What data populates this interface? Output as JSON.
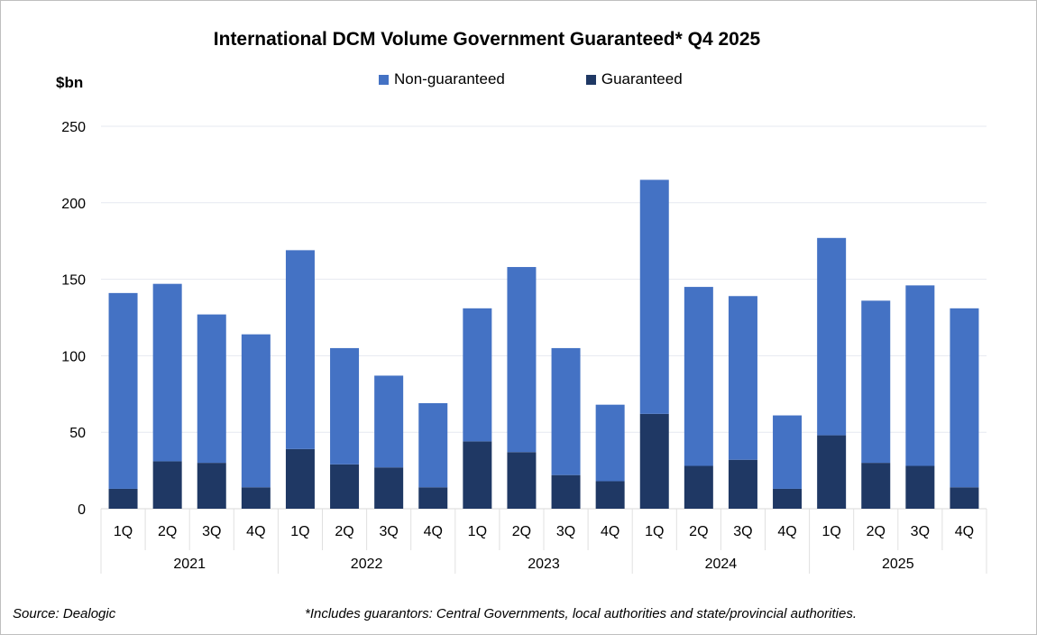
{
  "chart_data": {
    "type": "bar",
    "stacked": true,
    "title": "International DCM Volume Government Guaranteed* Q4 2025",
    "ylabel": "$bn",
    "ylim": [
      0,
      250
    ],
    "yticks": [
      0,
      50,
      100,
      150,
      200,
      250
    ],
    "grid": true,
    "legend_position": "top",
    "categories": [
      "1Q",
      "2Q",
      "3Q",
      "4Q",
      "1Q",
      "2Q",
      "3Q",
      "4Q",
      "1Q",
      "2Q",
      "3Q",
      "4Q",
      "1Q",
      "2Q",
      "3Q",
      "4Q",
      "1Q",
      "2Q",
      "3Q",
      "4Q"
    ],
    "groups": [
      "2021",
      "2022",
      "2023",
      "2024",
      "2025"
    ],
    "series": [
      {
        "name": "Guaranteed",
        "color": "#1f3864",
        "values": [
          13,
          31,
          30,
          14,
          39,
          29,
          27,
          14,
          44,
          37,
          22,
          18,
          62,
          28,
          32,
          13,
          48,
          30,
          28,
          14
        ]
      },
      {
        "name": "Non-guaranteed",
        "color": "#4472c4",
        "values": [
          128,
          116,
          97,
          100,
          130,
          76,
          60,
          55,
          87,
          121,
          83,
          50,
          153,
          117,
          107,
          48,
          129,
          106,
          118,
          117
        ]
      }
    ],
    "legend_order": [
      "Non-guaranteed",
      "Guaranteed"
    ]
  },
  "footer": {
    "source": "Source: Dealogic",
    "note": "*Includes guarantors: Central Governments, local authorities and state/provincial authorities."
  }
}
